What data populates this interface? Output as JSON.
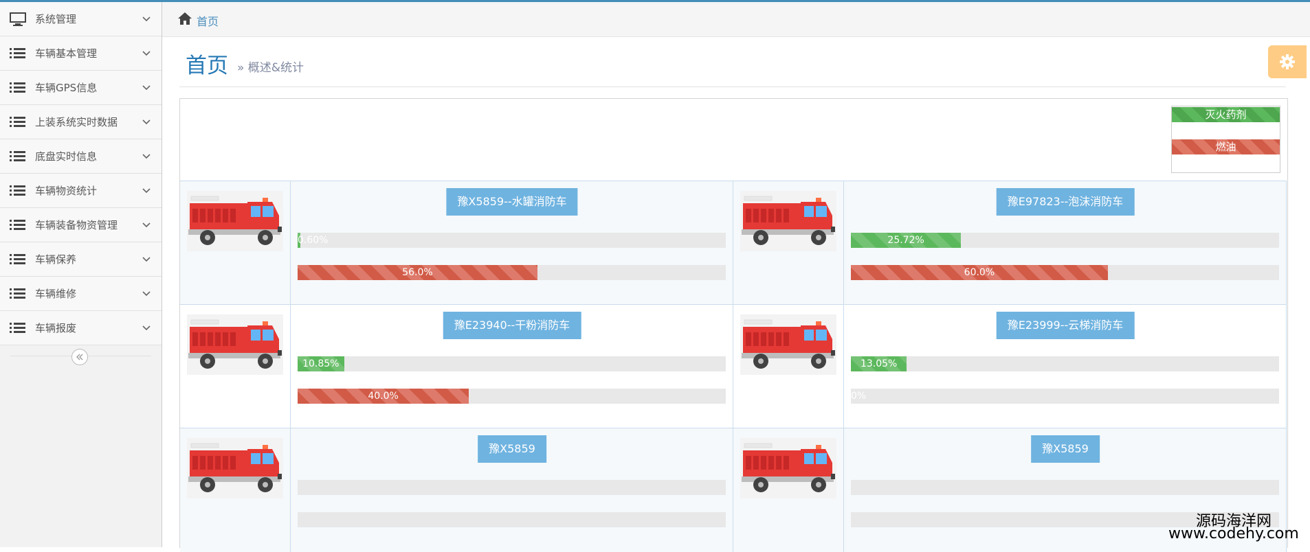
{
  "sidebar": {
    "items": [
      {
        "label": "系统管理",
        "icon": "monitor-icon"
      },
      {
        "label": "车辆基本管理",
        "icon": "list-icon"
      },
      {
        "label": "车辆GPS信息",
        "icon": "list-icon"
      },
      {
        "label": "上装系统实时数据",
        "icon": "list-icon"
      },
      {
        "label": "底盘实时信息",
        "icon": "list-icon"
      },
      {
        "label": "车辆物资统计",
        "icon": "list-icon"
      },
      {
        "label": "车辆装备物资管理",
        "icon": "list-icon"
      },
      {
        "label": "车辆保养",
        "icon": "list-icon"
      },
      {
        "label": "车辆维修",
        "icon": "list-icon"
      },
      {
        "label": "车辆报废",
        "icon": "list-icon"
      }
    ]
  },
  "breadcrumb": {
    "home": "首页"
  },
  "header": {
    "title": "首页",
    "subtitle": "» 概述&统计"
  },
  "legend": {
    "agent": "灭火药剂",
    "fuel": "燃油"
  },
  "colors": {
    "accent": "#438eb9",
    "agent": "#5cb85c",
    "fuel": "#d15b47",
    "name_button": "#6fb3e0",
    "settings": "#ffb752"
  },
  "vehicles": [
    {
      "name": "豫X5859--水罐消防车",
      "agent_pct": 0.6,
      "agent_label": "0.60%",
      "fuel_pct": 56.0,
      "fuel_label": "56.0%"
    },
    {
      "name": "豫E97823--泡沫消防车",
      "agent_pct": 25.72,
      "agent_label": "25.72%",
      "fuel_pct": 60.0,
      "fuel_label": "60.0%"
    },
    {
      "name": "豫E23940--干粉消防车",
      "agent_pct": 10.85,
      "agent_label": "10.85%",
      "fuel_pct": 40.0,
      "fuel_label": "40.0%"
    },
    {
      "name": "豫E23999--云梯消防车",
      "agent_pct": 13.05,
      "agent_label": "13.05%",
      "fuel_pct": 0,
      "fuel_label": "0%"
    },
    {
      "name": "豫X5859",
      "agent_pct": 0,
      "agent_label": "",
      "fuel_pct": 0,
      "fuel_label": ""
    },
    {
      "name": "豫X5859",
      "agent_pct": 0,
      "agent_label": "",
      "fuel_pct": 0,
      "fuel_label": ""
    }
  ],
  "watermark": {
    "line1": "源码海洋网",
    "line2": "www.codehy.com"
  }
}
